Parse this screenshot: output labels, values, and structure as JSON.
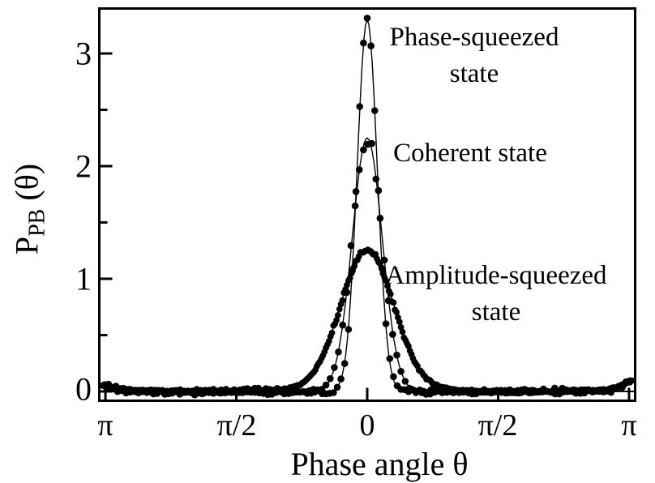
{
  "chart_data": {
    "type": "scatter",
    "title": "",
    "xlabel": "Phase angle θ",
    "ylabel": "P_PB(θ)",
    "ylabel_parts": {
      "main": "P",
      "sub": "PB",
      "rest": " (θ)"
    },
    "xlim": [
      -3.22,
      3.22
    ],
    "ylim": [
      -0.09,
      3.4
    ],
    "grid": false,
    "x_ticks": [
      {
        "label": "π",
        "value": -3.14159
      },
      {
        "label": "π/2",
        "value": -1.5708
      },
      {
        "label": "0",
        "value": 0
      },
      {
        "label": "π/2",
        "value": 1.5708
      },
      {
        "label": "π",
        "value": 3.14159
      }
    ],
    "y_ticks": [
      {
        "label": "0",
        "value": 0
      },
      {
        "label": "1",
        "value": 1
      },
      {
        "label": "2",
        "value": 2
      },
      {
        "label": "3",
        "value": 3
      }
    ],
    "y_minor_ticks": [
      0.5,
      1.5,
      2.5
    ],
    "series": [
      {
        "name": "Phase-squeezed state",
        "fit": "gaussian",
        "peak": 3.3,
        "center": 0,
        "sigma": 0.12,
        "noise": 0.12,
        "point_step": 0.045,
        "marker_radius": 4.3,
        "fit_points": {
          "theta_abs": [
            0,
            0.1,
            0.2,
            0.3,
            0.4,
            0.5
          ],
          "P": [
            3.3,
            2.33,
            0.82,
            0.15,
            0.01,
            0
          ]
        }
      },
      {
        "name": "Coherent state",
        "fit": "gaussian",
        "peak": 2.25,
        "center": 0,
        "sigma": 0.18,
        "noise": 0.09,
        "point_step": 0.05,
        "marker_radius": 4.3,
        "fit_points": {
          "theta_abs": [
            0,
            0.1,
            0.2,
            0.3,
            0.4,
            0.5,
            0.6
          ],
          "P": [
            2.25,
            1.93,
            1.21,
            0.56,
            0.19,
            0.05,
            0.01
          ]
        }
      },
      {
        "name": "Amplitude-squeezed state",
        "fit": "gaussian",
        "peak": 1.27,
        "center": 0,
        "sigma": 0.32,
        "noise": 0.045,
        "point_step": 0.018,
        "marker_radius": 3.9,
        "fit_points": {
          "theta_abs": [
            0,
            0.2,
            0.4,
            0.6,
            0.8,
            1.0
          ],
          "P": [
            1.27,
            1.04,
            0.58,
            0.22,
            0.06,
            0.01
          ]
        }
      }
    ],
    "baseline": {
      "noise_band": 0.03,
      "edge_bump": {
        "amplitude": 0.1,
        "width": 0.22,
        "left_scale": 0.6
      }
    },
    "annotations": [
      {
        "lines": [
          "Phase-squeezed",
          "state"
        ]
      },
      {
        "lines": [
          "Coherent state"
        ]
      },
      {
        "lines": [
          "Amplitude-squeezed",
          "state"
        ]
      }
    ],
    "marker_color": "#000000",
    "line_color": "#000000",
    "background": "#ffffff"
  }
}
